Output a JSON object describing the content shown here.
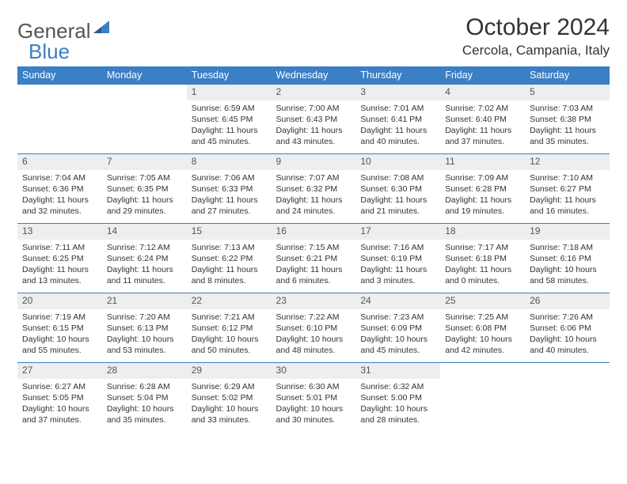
{
  "logo": {
    "text1": "General",
    "text2": "Blue"
  },
  "title": "October 2024",
  "location": "Cercola, Campania, Italy",
  "colors": {
    "accent": "#3b7fc4",
    "dayHeader": "#eceeef"
  },
  "weekdays": [
    "Sunday",
    "Monday",
    "Tuesday",
    "Wednesday",
    "Thursday",
    "Friday",
    "Saturday"
  ],
  "weeks": [
    [
      null,
      null,
      {
        "n": "1",
        "sr": "6:59 AM",
        "ss": "6:45 PM",
        "dl": "11 hours and 45 minutes."
      },
      {
        "n": "2",
        "sr": "7:00 AM",
        "ss": "6:43 PM",
        "dl": "11 hours and 43 minutes."
      },
      {
        "n": "3",
        "sr": "7:01 AM",
        "ss": "6:41 PM",
        "dl": "11 hours and 40 minutes."
      },
      {
        "n": "4",
        "sr": "7:02 AM",
        "ss": "6:40 PM",
        "dl": "11 hours and 37 minutes."
      },
      {
        "n": "5",
        "sr": "7:03 AM",
        "ss": "6:38 PM",
        "dl": "11 hours and 35 minutes."
      }
    ],
    [
      {
        "n": "6",
        "sr": "7:04 AM",
        "ss": "6:36 PM",
        "dl": "11 hours and 32 minutes."
      },
      {
        "n": "7",
        "sr": "7:05 AM",
        "ss": "6:35 PM",
        "dl": "11 hours and 29 minutes."
      },
      {
        "n": "8",
        "sr": "7:06 AM",
        "ss": "6:33 PM",
        "dl": "11 hours and 27 minutes."
      },
      {
        "n": "9",
        "sr": "7:07 AM",
        "ss": "6:32 PM",
        "dl": "11 hours and 24 minutes."
      },
      {
        "n": "10",
        "sr": "7:08 AM",
        "ss": "6:30 PM",
        "dl": "11 hours and 21 minutes."
      },
      {
        "n": "11",
        "sr": "7:09 AM",
        "ss": "6:28 PM",
        "dl": "11 hours and 19 minutes."
      },
      {
        "n": "12",
        "sr": "7:10 AM",
        "ss": "6:27 PM",
        "dl": "11 hours and 16 minutes."
      }
    ],
    [
      {
        "n": "13",
        "sr": "7:11 AM",
        "ss": "6:25 PM",
        "dl": "11 hours and 13 minutes."
      },
      {
        "n": "14",
        "sr": "7:12 AM",
        "ss": "6:24 PM",
        "dl": "11 hours and 11 minutes."
      },
      {
        "n": "15",
        "sr": "7:13 AM",
        "ss": "6:22 PM",
        "dl": "11 hours and 8 minutes."
      },
      {
        "n": "16",
        "sr": "7:15 AM",
        "ss": "6:21 PM",
        "dl": "11 hours and 6 minutes."
      },
      {
        "n": "17",
        "sr": "7:16 AM",
        "ss": "6:19 PM",
        "dl": "11 hours and 3 minutes."
      },
      {
        "n": "18",
        "sr": "7:17 AM",
        "ss": "6:18 PM",
        "dl": "11 hours and 0 minutes."
      },
      {
        "n": "19",
        "sr": "7:18 AM",
        "ss": "6:16 PM",
        "dl": "10 hours and 58 minutes."
      }
    ],
    [
      {
        "n": "20",
        "sr": "7:19 AM",
        "ss": "6:15 PM",
        "dl": "10 hours and 55 minutes."
      },
      {
        "n": "21",
        "sr": "7:20 AM",
        "ss": "6:13 PM",
        "dl": "10 hours and 53 minutes."
      },
      {
        "n": "22",
        "sr": "7:21 AM",
        "ss": "6:12 PM",
        "dl": "10 hours and 50 minutes."
      },
      {
        "n": "23",
        "sr": "7:22 AM",
        "ss": "6:10 PM",
        "dl": "10 hours and 48 minutes."
      },
      {
        "n": "24",
        "sr": "7:23 AM",
        "ss": "6:09 PM",
        "dl": "10 hours and 45 minutes."
      },
      {
        "n": "25",
        "sr": "7:25 AM",
        "ss": "6:08 PM",
        "dl": "10 hours and 42 minutes."
      },
      {
        "n": "26",
        "sr": "7:26 AM",
        "ss": "6:06 PM",
        "dl": "10 hours and 40 minutes."
      }
    ],
    [
      {
        "n": "27",
        "sr": "6:27 AM",
        "ss": "5:05 PM",
        "dl": "10 hours and 37 minutes."
      },
      {
        "n": "28",
        "sr": "6:28 AM",
        "ss": "5:04 PM",
        "dl": "10 hours and 35 minutes."
      },
      {
        "n": "29",
        "sr": "6:29 AM",
        "ss": "5:02 PM",
        "dl": "10 hours and 33 minutes."
      },
      {
        "n": "30",
        "sr": "6:30 AM",
        "ss": "5:01 PM",
        "dl": "10 hours and 30 minutes."
      },
      {
        "n": "31",
        "sr": "6:32 AM",
        "ss": "5:00 PM",
        "dl": "10 hours and 28 minutes."
      },
      null,
      null
    ]
  ],
  "labels": {
    "sunrise": "Sunrise:",
    "sunset": "Sunset:",
    "daylight": "Daylight:"
  }
}
